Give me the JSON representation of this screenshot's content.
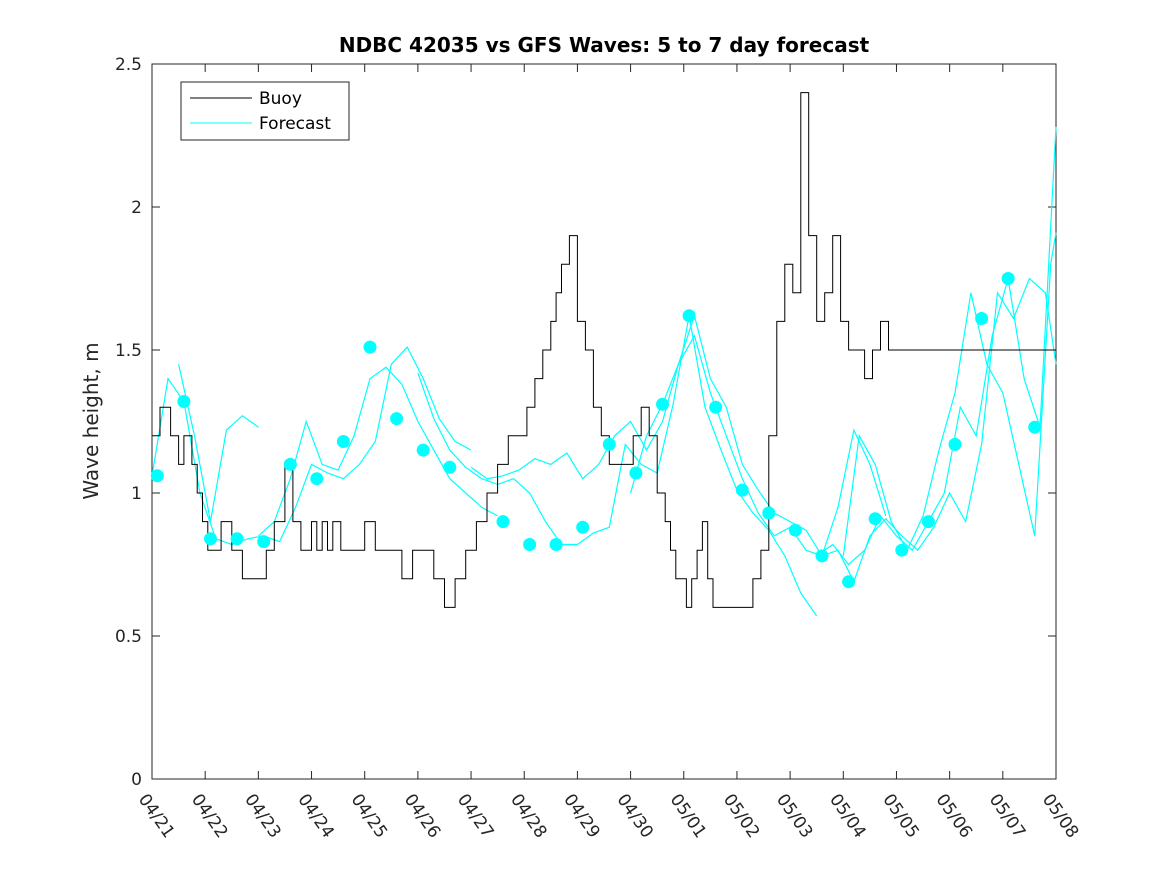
{
  "chart_data": {
    "type": "line",
    "title": "NDBC 42035 vs GFS Waves: 5 to 7 day forecast",
    "xlabel": "",
    "ylabel": "Wave height, m",
    "xlim": [
      "04/21",
      "05/08"
    ],
    "ylim": [
      0,
      2.5
    ],
    "x_ticks": [
      "04/21",
      "04/22",
      "04/23",
      "04/24",
      "04/25",
      "04/26",
      "04/27",
      "04/28",
      "04/29",
      "04/30",
      "05/01",
      "05/02",
      "05/03",
      "05/04",
      "05/05",
      "05/06",
      "05/07",
      "05/08"
    ],
    "y_ticks": [
      "0",
      "0.5",
      "1",
      "1.5",
      "2",
      "2.5"
    ],
    "grid": false,
    "legend_position": "top-left",
    "colors": {
      "buoy": "#000000",
      "forecast": "#00ffff"
    },
    "series": [
      {
        "name": "Buoy",
        "style": "step-line",
        "x": [
          0,
          0.15,
          0.35,
          0.5,
          0.6,
          0.75,
          0.85,
          0.95,
          1.05,
          1.15,
          1.3,
          1.5,
          1.7,
          1.85,
          2,
          2.15,
          2.3,
          2.5,
          2.65,
          2.8,
          2.9,
          3,
          3.1,
          3.2,
          3.3,
          3.4,
          3.55,
          3.7,
          3.85,
          4,
          4.2,
          4.35,
          4.5,
          4.7,
          4.9,
          5.1,
          5.3,
          5.5,
          5.7,
          5.9,
          6.1,
          6.3,
          6.5,
          6.7,
          6.9,
          7.05,
          7.2,
          7.35,
          7.5,
          7.6,
          7.7,
          7.85,
          8,
          8.15,
          8.3,
          8.45,
          8.6,
          8.75,
          8.9,
          9.05,
          9.2,
          9.35,
          9.5,
          9.65,
          9.75,
          9.85,
          9.95,
          10.05,
          10.15,
          10.25,
          10.35,
          10.45,
          10.55,
          10.7,
          10.85,
          11,
          11.15,
          11.3,
          11.45,
          11.6,
          11.75,
          11.9,
          12.05,
          12.2,
          12.35,
          12.5,
          12.65,
          12.8,
          12.95,
          13.1,
          13.25,
          13.4,
          13.55,
          13.7,
          13.85,
          14,
          14.15,
          14.3,
          14.45,
          14.6,
          14.75,
          14.9,
          15.05,
          15.2,
          15.35,
          15.5,
          15.6,
          15.7,
          15.8,
          15.9,
          16,
          16.1,
          16.2,
          16.3,
          16.4,
          16.5,
          16.6,
          16.7,
          16.8,
          16.9,
          17
        ],
        "y": [
          1.2,
          1.3,
          1.2,
          1.1,
          1.2,
          1.1,
          1.0,
          0.9,
          0.8,
          0.8,
          0.9,
          0.8,
          0.7,
          0.7,
          0.7,
          0.8,
          0.9,
          1.1,
          0.9,
          0.8,
          0.8,
          0.9,
          0.8,
          0.9,
          0.8,
          0.9,
          0.8,
          0.8,
          0.8,
          0.9,
          0.8,
          0.8,
          0.8,
          0.7,
          0.8,
          0.8,
          0.7,
          0.6,
          0.7,
          0.8,
          0.9,
          1.0,
          1.1,
          1.2,
          1.2,
          1.3,
          1.4,
          1.5,
          1.6,
          1.7,
          1.8,
          1.9,
          1.6,
          1.5,
          1.3,
          1.2,
          1.1,
          1.1,
          1.1,
          1.2,
          1.3,
          1.2,
          1.0,
          0.9,
          0.8,
          0.7,
          0.7,
          0.6,
          0.7,
          0.8,
          0.9,
          0.7,
          0.6,
          0.6,
          0.6,
          0.6,
          0.6,
          0.7,
          0.8,
          1.2,
          1.6,
          1.8,
          1.7,
          2.4,
          1.9,
          1.6,
          1.7,
          1.9,
          1.6,
          1.5,
          1.5,
          1.4,
          1.5,
          1.6,
          1.5,
          1.5,
          1.5,
          1.5,
          1.5,
          1.5,
          1.5,
          1.5,
          1.5,
          1.5,
          1.5,
          1.5,
          1.5,
          1.5,
          1.5,
          1.5,
          1.5,
          1.5,
          1.5,
          1.5,
          1.5,
          1.5,
          1.5,
          1.5,
          1.5,
          1.5,
          1.5
        ]
      },
      {
        "name": "Forecast",
        "style": "lines-with-markers",
        "markers": {
          "x": [
            0.1,
            0.6,
            1.1,
            1.6,
            2.1,
            2.6,
            3.1,
            3.6,
            4.1,
            4.6,
            5.1,
            5.6,
            6.6,
            7.1,
            7.6,
            8.1,
            8.6,
            9.1,
            9.6,
            10.1,
            10.6,
            11.1,
            11.6,
            12.1,
            12.6,
            13.1,
            13.6,
            14.1,
            14.6,
            15.1,
            15.6,
            16.1,
            16.6
          ],
          "y": [
            1.06,
            1.32,
            0.84,
            0.84,
            0.83,
            1.1,
            1.05,
            1.18,
            1.51,
            1.26,
            1.15,
            1.09,
            0.9,
            0.82,
            0.82,
            0.88,
            1.17,
            1.07,
            1.31,
            1.62,
            1.3,
            1.01,
            0.93,
            0.87,
            0.78,
            0.69,
            0.91,
            0.8,
            0.9,
            1.17,
            1.61,
            1.75,
            1.23
          ]
        },
        "tracks": [
          {
            "x": [
              0,
              0.3,
              0.6,
              0.9,
              1.2,
              1.5,
              1.8,
              2.1,
              2.4,
              2.7,
              3.0,
              3.3,
              3.6,
              3.9,
              4.2,
              4.5,
              4.8,
              5.1,
              5.4,
              5.7,
              6.0
            ],
            "y": [
              1.06,
              1.4,
              1.32,
              1.0,
              0.84,
              0.82,
              0.84,
              0.85,
              0.83,
              0.95,
              1.1,
              1.07,
              1.05,
              1.1,
              1.18,
              1.45,
              1.51,
              1.4,
              1.26,
              1.18,
              1.15
            ]
          },
          {
            "x": [
              0.5,
              0.8,
              1.1,
              1.4,
              1.7,
              2.0
            ],
            "y": [
              1.45,
              1.2,
              0.9,
              1.22,
              1.27,
              1.23
            ]
          },
          {
            "x": [
              2.0,
              2.3,
              2.6,
              2.9,
              3.2,
              3.5,
              3.8,
              4.1,
              4.4,
              4.7,
              5.0,
              5.3,
              5.6,
              5.9,
              6.2,
              6.5
            ],
            "y": [
              0.85,
              0.9,
              1.05,
              1.25,
              1.1,
              1.08,
              1.2,
              1.4,
              1.44,
              1.38,
              1.25,
              1.15,
              1.05,
              1.0,
              0.95,
              0.92
            ]
          },
          {
            "x": [
              5.0,
              5.3,
              5.6,
              5.9,
              6.2,
              6.5,
              6.8,
              7.1,
              7.4,
              7.7,
              8.0,
              8.3,
              8.6,
              8.9,
              9.2,
              9.5,
              9.8,
              10.1,
              10.4,
              10.7,
              11.0,
              11.3,
              11.6,
              11.9,
              12.2,
              12.5
            ],
            "y": [
              1.42,
              1.26,
              1.15,
              1.09,
              1.05,
              1.03,
              1.05,
              1.0,
              0.9,
              0.82,
              0.82,
              0.86,
              0.88,
              1.17,
              1.1,
              1.07,
              1.31,
              1.62,
              1.3,
              1.15,
              1.01,
              0.93,
              0.87,
              0.78,
              0.65,
              0.57
            ]
          },
          {
            "x": [
              6.0,
              6.3,
              6.6,
              6.9,
              7.2,
              7.5,
              7.8,
              8.1,
              8.4,
              8.7,
              9.0,
              9.3,
              9.6,
              9.9,
              10.2,
              10.5,
              10.8,
              11.1,
              11.4,
              11.7,
              12.0,
              12.3,
              12.6,
              12.9,
              13.2,
              13.5,
              13.8
            ],
            "y": [
              1.09,
              1.05,
              1.06,
              1.08,
              1.12,
              1.1,
              1.14,
              1.05,
              1.1,
              1.2,
              1.25,
              1.15,
              1.25,
              1.45,
              1.55,
              1.35,
              1.2,
              1.05,
              0.93,
              0.85,
              0.88,
              0.8,
              0.78,
              0.95,
              1.22,
              1.1,
              0.92
            ]
          },
          {
            "x": [
              9.0,
              9.3,
              9.6,
              9.9,
              10.2,
              10.5,
              10.8,
              11.1,
              11.4,
              11.7,
              12.0,
              12.3,
              12.6,
              12.9,
              13.2,
              13.5,
              13.8,
              14.1,
              14.4,
              14.7,
              15.0,
              15.3,
              15.6,
              15.9,
              16.2,
              16.5,
              16.8,
              17.0
            ],
            "y": [
              1.0,
              1.2,
              1.31,
              1.45,
              1.62,
              1.4,
              1.3,
              1.1,
              1.01,
              0.93,
              0.9,
              0.87,
              0.78,
              0.8,
              0.69,
              0.85,
              0.91,
              0.85,
              0.8,
              0.88,
              1.0,
              0.9,
              1.17,
              1.7,
              1.61,
              1.75,
              1.7,
              1.45
            ]
          },
          {
            "x": [
              12.5,
              12.8,
              13.1,
              13.4,
              13.7,
              14.0,
              14.3,
              14.6,
              14.9,
              15.2,
              15.5,
              15.8,
              16.1,
              16.4,
              16.7,
              17.0
            ],
            "y": [
              0.78,
              0.82,
              0.75,
              0.8,
              0.92,
              0.85,
              0.8,
              0.9,
              1.0,
              1.3,
              1.2,
              1.55,
              1.75,
              1.4,
              1.23,
              2.28
            ]
          },
          {
            "x": [
              13.0,
              13.3,
              13.6,
              13.9,
              14.2,
              14.5,
              14.8,
              15.1,
              15.4,
              15.7,
              16.0,
              16.3,
              16.6,
              16.9,
              17.0
            ],
            "y": [
              0.78,
              1.2,
              1.1,
              0.9,
              0.8,
              0.92,
              1.15,
              1.35,
              1.7,
              1.45,
              1.35,
              1.1,
              0.85,
              1.8,
              1.91
            ]
          }
        ]
      }
    ]
  }
}
